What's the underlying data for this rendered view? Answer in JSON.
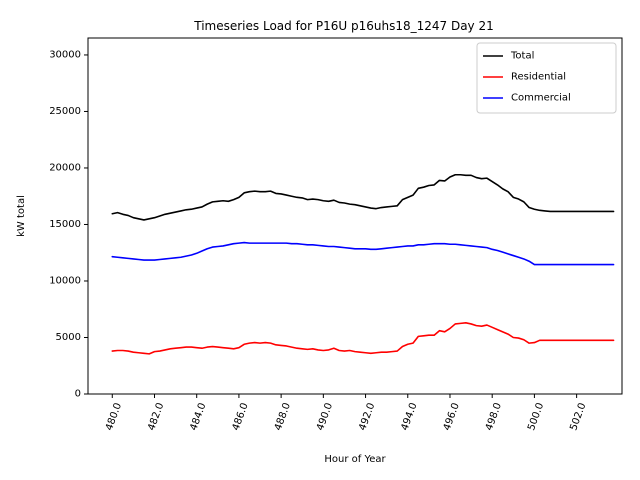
{
  "chart_data": {
    "type": "line",
    "title": "Timeseries Load for P16U p16uhs18_1247  Day 21",
    "xlabel": "Hour of Year",
    "ylabel": "kW total",
    "xlim": [
      478.85,
      504.15
    ],
    "ylim": [
      0,
      31500
    ],
    "xticks": [
      480.0,
      482.0,
      484.0,
      486.0,
      488.0,
      490.0,
      492.0,
      494.0,
      496.0,
      498.0,
      500.0,
      502.0
    ],
    "xtick_labels": [
      "480.0",
      "482.0",
      "484.0",
      "486.0",
      "488.0",
      "490.0",
      "492.0",
      "494.0",
      "496.0",
      "498.0",
      "500.0",
      "502.0"
    ],
    "yticks": [
      0,
      5000,
      10000,
      15000,
      20000,
      25000,
      30000
    ],
    "ytick_labels": [
      "0",
      "5000",
      "10000",
      "15000",
      "20000",
      "25000",
      "30000"
    ],
    "legend_position": "top-right",
    "x": [
      480.0,
      480.25,
      480.5,
      480.75,
      481.0,
      481.25,
      481.5,
      481.75,
      482.0,
      482.25,
      482.5,
      482.75,
      483.0,
      483.25,
      483.5,
      483.75,
      484.0,
      484.25,
      484.5,
      484.75,
      485.0,
      485.25,
      485.5,
      485.75,
      486.0,
      486.25,
      486.5,
      486.75,
      487.0,
      487.25,
      487.5,
      487.75,
      488.0,
      488.25,
      488.5,
      488.75,
      489.0,
      489.25,
      489.5,
      489.75,
      490.0,
      490.25,
      490.5,
      490.75,
      491.0,
      491.25,
      491.5,
      491.75,
      492.0,
      492.25,
      492.5,
      492.75,
      493.0,
      493.25,
      493.5,
      493.75,
      494.0,
      494.25,
      494.5,
      494.75,
      495.0,
      495.25,
      495.5,
      495.75,
      496.0,
      496.25,
      496.5,
      496.75,
      497.0,
      497.25,
      497.5,
      497.75,
      498.0,
      498.25,
      498.5,
      498.75,
      499.0,
      499.25,
      499.5,
      499.75,
      500.0,
      500.25,
      500.5,
      500.75,
      501.0,
      501.25,
      501.5,
      501.75,
      502.0,
      502.25,
      502.5,
      502.75,
      503.0,
      503.25,
      503.5,
      503.75
    ],
    "series": [
      {
        "name": "Total",
        "color": "#000000",
        "values": [
          15950,
          16050,
          15900,
          15800,
          15600,
          15500,
          15400,
          15500,
          15600,
          15750,
          15900,
          16000,
          16100,
          16200,
          16300,
          16350,
          16450,
          16550,
          16800,
          17000,
          17050,
          17100,
          17050,
          17200,
          17400,
          17800,
          17900,
          17950,
          17900,
          17900,
          17950,
          17750,
          17700,
          17600,
          17500,
          17400,
          17350,
          17200,
          17250,
          17200,
          17100,
          17050,
          17150,
          16950,
          16900,
          16800,
          16750,
          16650,
          16550,
          16450,
          16400,
          16500,
          16550,
          16600,
          16650,
          17200,
          17400,
          17600,
          18200,
          18300,
          18450,
          18500,
          18900,
          18850,
          19200,
          19400,
          19400,
          19350,
          19350,
          19150,
          19050,
          19100,
          18800,
          18500,
          18150,
          17900,
          17400,
          17250,
          17000,
          16500,
          16350,
          16250,
          16200,
          16150,
          16150,
          16150,
          16150,
          16150,
          16150,
          16150,
          16150,
          16150,
          16150,
          16150,
          16150,
          16150
        ]
      },
      {
        "name": "Residential",
        "color": "#ff0000",
        "values": [
          3800,
          3850,
          3850,
          3800,
          3700,
          3650,
          3600,
          3550,
          3750,
          3800,
          3900,
          4000,
          4050,
          4100,
          4150,
          4150,
          4100,
          4050,
          4150,
          4200,
          4150,
          4100,
          4050,
          4000,
          4100,
          4400,
          4500,
          4550,
          4500,
          4550,
          4500,
          4350,
          4300,
          4250,
          4150,
          4050,
          4000,
          3950,
          4000,
          3900,
          3850,
          3900,
          4050,
          3850,
          3800,
          3850,
          3750,
          3700,
          3650,
          3600,
          3650,
          3700,
          3700,
          3750,
          3800,
          4200,
          4400,
          4500,
          5100,
          5150,
          5200,
          5200,
          5600,
          5500,
          5800,
          6200,
          6250,
          6300,
          6200,
          6050,
          6000,
          6100,
          5900,
          5700,
          5500,
          5300,
          5000,
          4950,
          4800,
          4500,
          4550,
          4750,
          4750,
          4750,
          4750,
          4750,
          4750,
          4750,
          4750,
          4750,
          4750,
          4750,
          4750,
          4750,
          4750,
          4750
        ]
      },
      {
        "name": "Commercial",
        "color": "#0000ff",
        "values": [
          12150,
          12100,
          12050,
          12000,
          11950,
          11900,
          11850,
          11850,
          11850,
          11900,
          11950,
          12000,
          12050,
          12100,
          12200,
          12300,
          12450,
          12650,
          12850,
          13000,
          13050,
          13100,
          13200,
          13300,
          13350,
          13400,
          13350,
          13350,
          13350,
          13350,
          13350,
          13350,
          13350,
          13350,
          13300,
          13300,
          13250,
          13200,
          13200,
          13150,
          13100,
          13050,
          13050,
          13000,
          12950,
          12900,
          12850,
          12850,
          12850,
          12800,
          12800,
          12850,
          12900,
          12950,
          13000,
          13050,
          13100,
          13100,
          13200,
          13200,
          13250,
          13300,
          13300,
          13300,
          13250,
          13250,
          13200,
          13150,
          13100,
          13050,
          13000,
          12950,
          12800,
          12700,
          12550,
          12400,
          12250,
          12100,
          11950,
          11750,
          11450,
          11450,
          11450,
          11450,
          11450,
          11450,
          11450,
          11450,
          11450,
          11450,
          11450,
          11450,
          11450,
          11450,
          11450,
          11450
        ]
      }
    ]
  }
}
